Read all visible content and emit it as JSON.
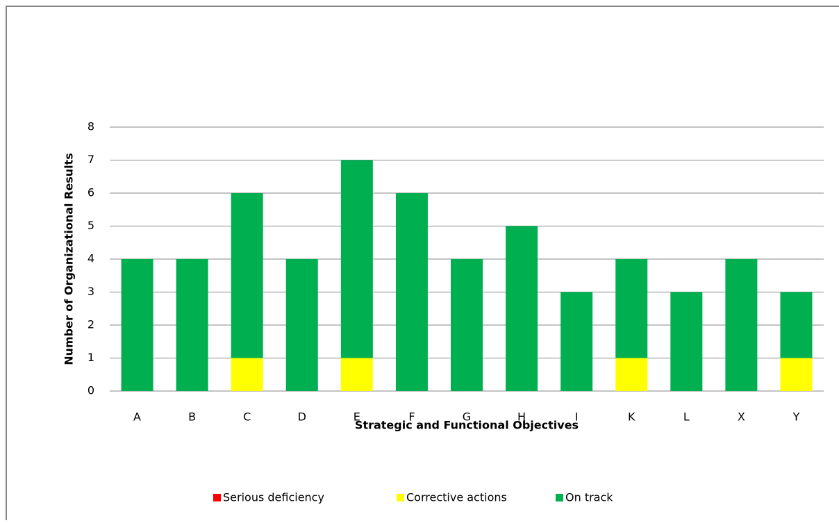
{
  "chart_data": {
    "type": "bar",
    "stacked": true,
    "x_label": "Strategic and Functional Objectives",
    "y_label": "Number of Organizational Results",
    "categories": [
      "A",
      "B",
      "C",
      "D",
      "E",
      "F",
      "G",
      "H",
      "I",
      "K",
      "L",
      "X",
      "Y"
    ],
    "series": [
      {
        "name": "Serious deficiency",
        "color": "#ff0000",
        "values": [
          0,
          0,
          0,
          0,
          0,
          0,
          0,
          0,
          0,
          0,
          0,
          0,
          0
        ]
      },
      {
        "name": "Corrective actions",
        "color": "#ffff00",
        "values": [
          0,
          0,
          1,
          0,
          1,
          0,
          0,
          0,
          0,
          1,
          0,
          0,
          1
        ]
      },
      {
        "name": "On track",
        "color": "#00b050",
        "values": [
          4,
          4,
          5,
          4,
          6,
          6,
          4,
          5,
          3,
          3,
          3,
          4,
          2
        ]
      }
    ],
    "ylim": [
      0,
      8
    ],
    "yticks": [
      0,
      1,
      2,
      3,
      4,
      5,
      6,
      7,
      8
    ],
    "grid": true,
    "legend": "bottom"
  }
}
